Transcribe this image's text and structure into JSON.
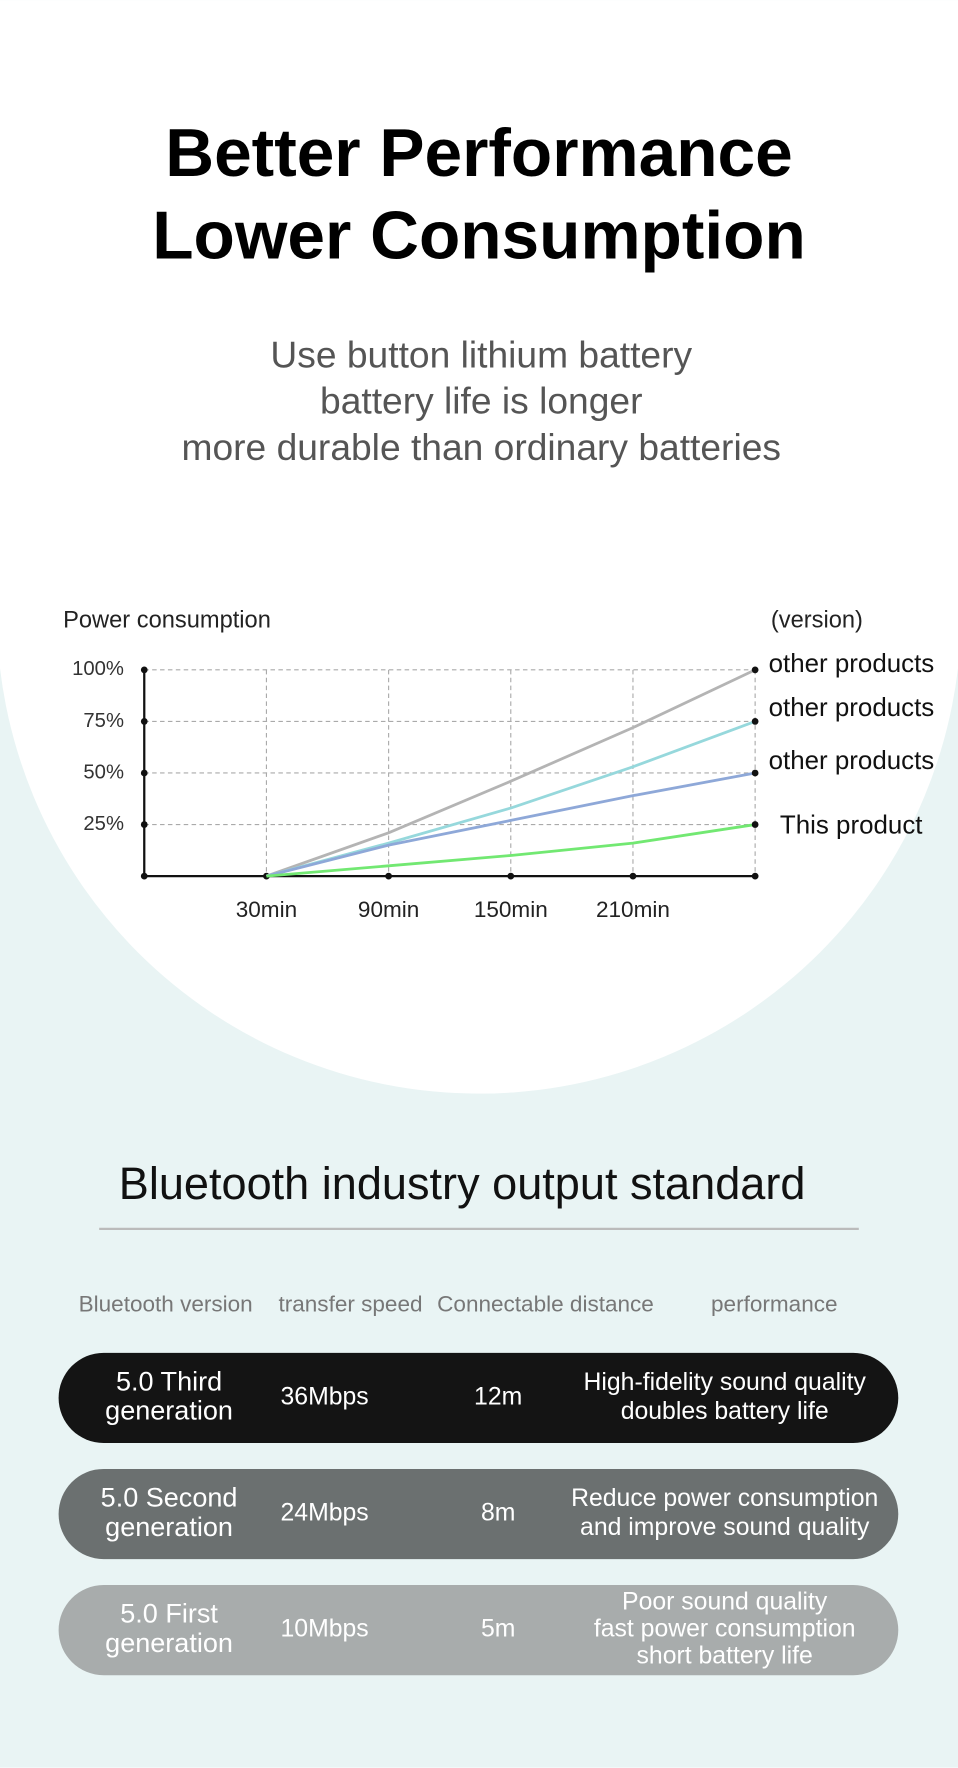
{
  "header": {
    "title": [
      "Better Performance",
      "Lower Consumption"
    ],
    "subtitle": [
      "Use button lithium battery",
      "battery life is longer",
      "more durable than ordinary batteries"
    ]
  },
  "chart_data": {
    "type": "line",
    "y_label": "Power consumption",
    "annotation": "(version)",
    "x": [
      30,
      90,
      150,
      210,
      270
    ],
    "xlim": [
      -30,
      270
    ],
    "xticks": [
      {
        "value": 30,
        "label": "30min"
      },
      {
        "value": 90,
        "label": "90min"
      },
      {
        "value": 150,
        "label": "150min"
      },
      {
        "value": 210,
        "label": "210min"
      }
    ],
    "ylim": [
      0,
      100
    ],
    "yticks": [
      {
        "value": 25,
        "label": "25%"
      },
      {
        "value": 50,
        "label": "50%"
      },
      {
        "value": 75,
        "label": "75%"
      },
      {
        "value": 100,
        "label": "100%"
      }
    ],
    "grid": true,
    "series": [
      {
        "name": "other products",
        "color": "#b4b4b4",
        "values": [
          0,
          21,
          46,
          72,
          100
        ]
      },
      {
        "name": "other products",
        "color": "#96d8dc",
        "values": [
          0,
          16,
          33,
          53,
          75
        ]
      },
      {
        "name": "other products",
        "color": "#8ea8d8",
        "values": [
          0,
          15,
          27,
          39,
          50
        ]
      },
      {
        "name": "This product",
        "color": "#72e872",
        "values": [
          0,
          5,
          10,
          16,
          25
        ]
      }
    ]
  },
  "table": {
    "title": "Bluetooth industry output standard",
    "headers": [
      "Bluetooth version",
      "transfer speed",
      "Connectable distance",
      "performance"
    ],
    "rows": [
      [
        [
          "5.0 Third",
          "generation"
        ],
        [
          "36Mbps"
        ],
        [
          "12m"
        ],
        [
          "High-fidelity sound quality",
          "doubles battery life"
        ]
      ],
      [
        [
          "5.0 Second",
          "generation"
        ],
        [
          "24Mbps"
        ],
        [
          "8m"
        ],
        [
          "Reduce power consumption",
          "and improve sound quality"
        ]
      ],
      [
        [
          "5.0 First",
          "generation"
        ],
        [
          "10Mbps"
        ],
        [
          "5m"
        ],
        [
          "Poor sound quality",
          "fast power consumption",
          "short battery life"
        ]
      ]
    ]
  }
}
